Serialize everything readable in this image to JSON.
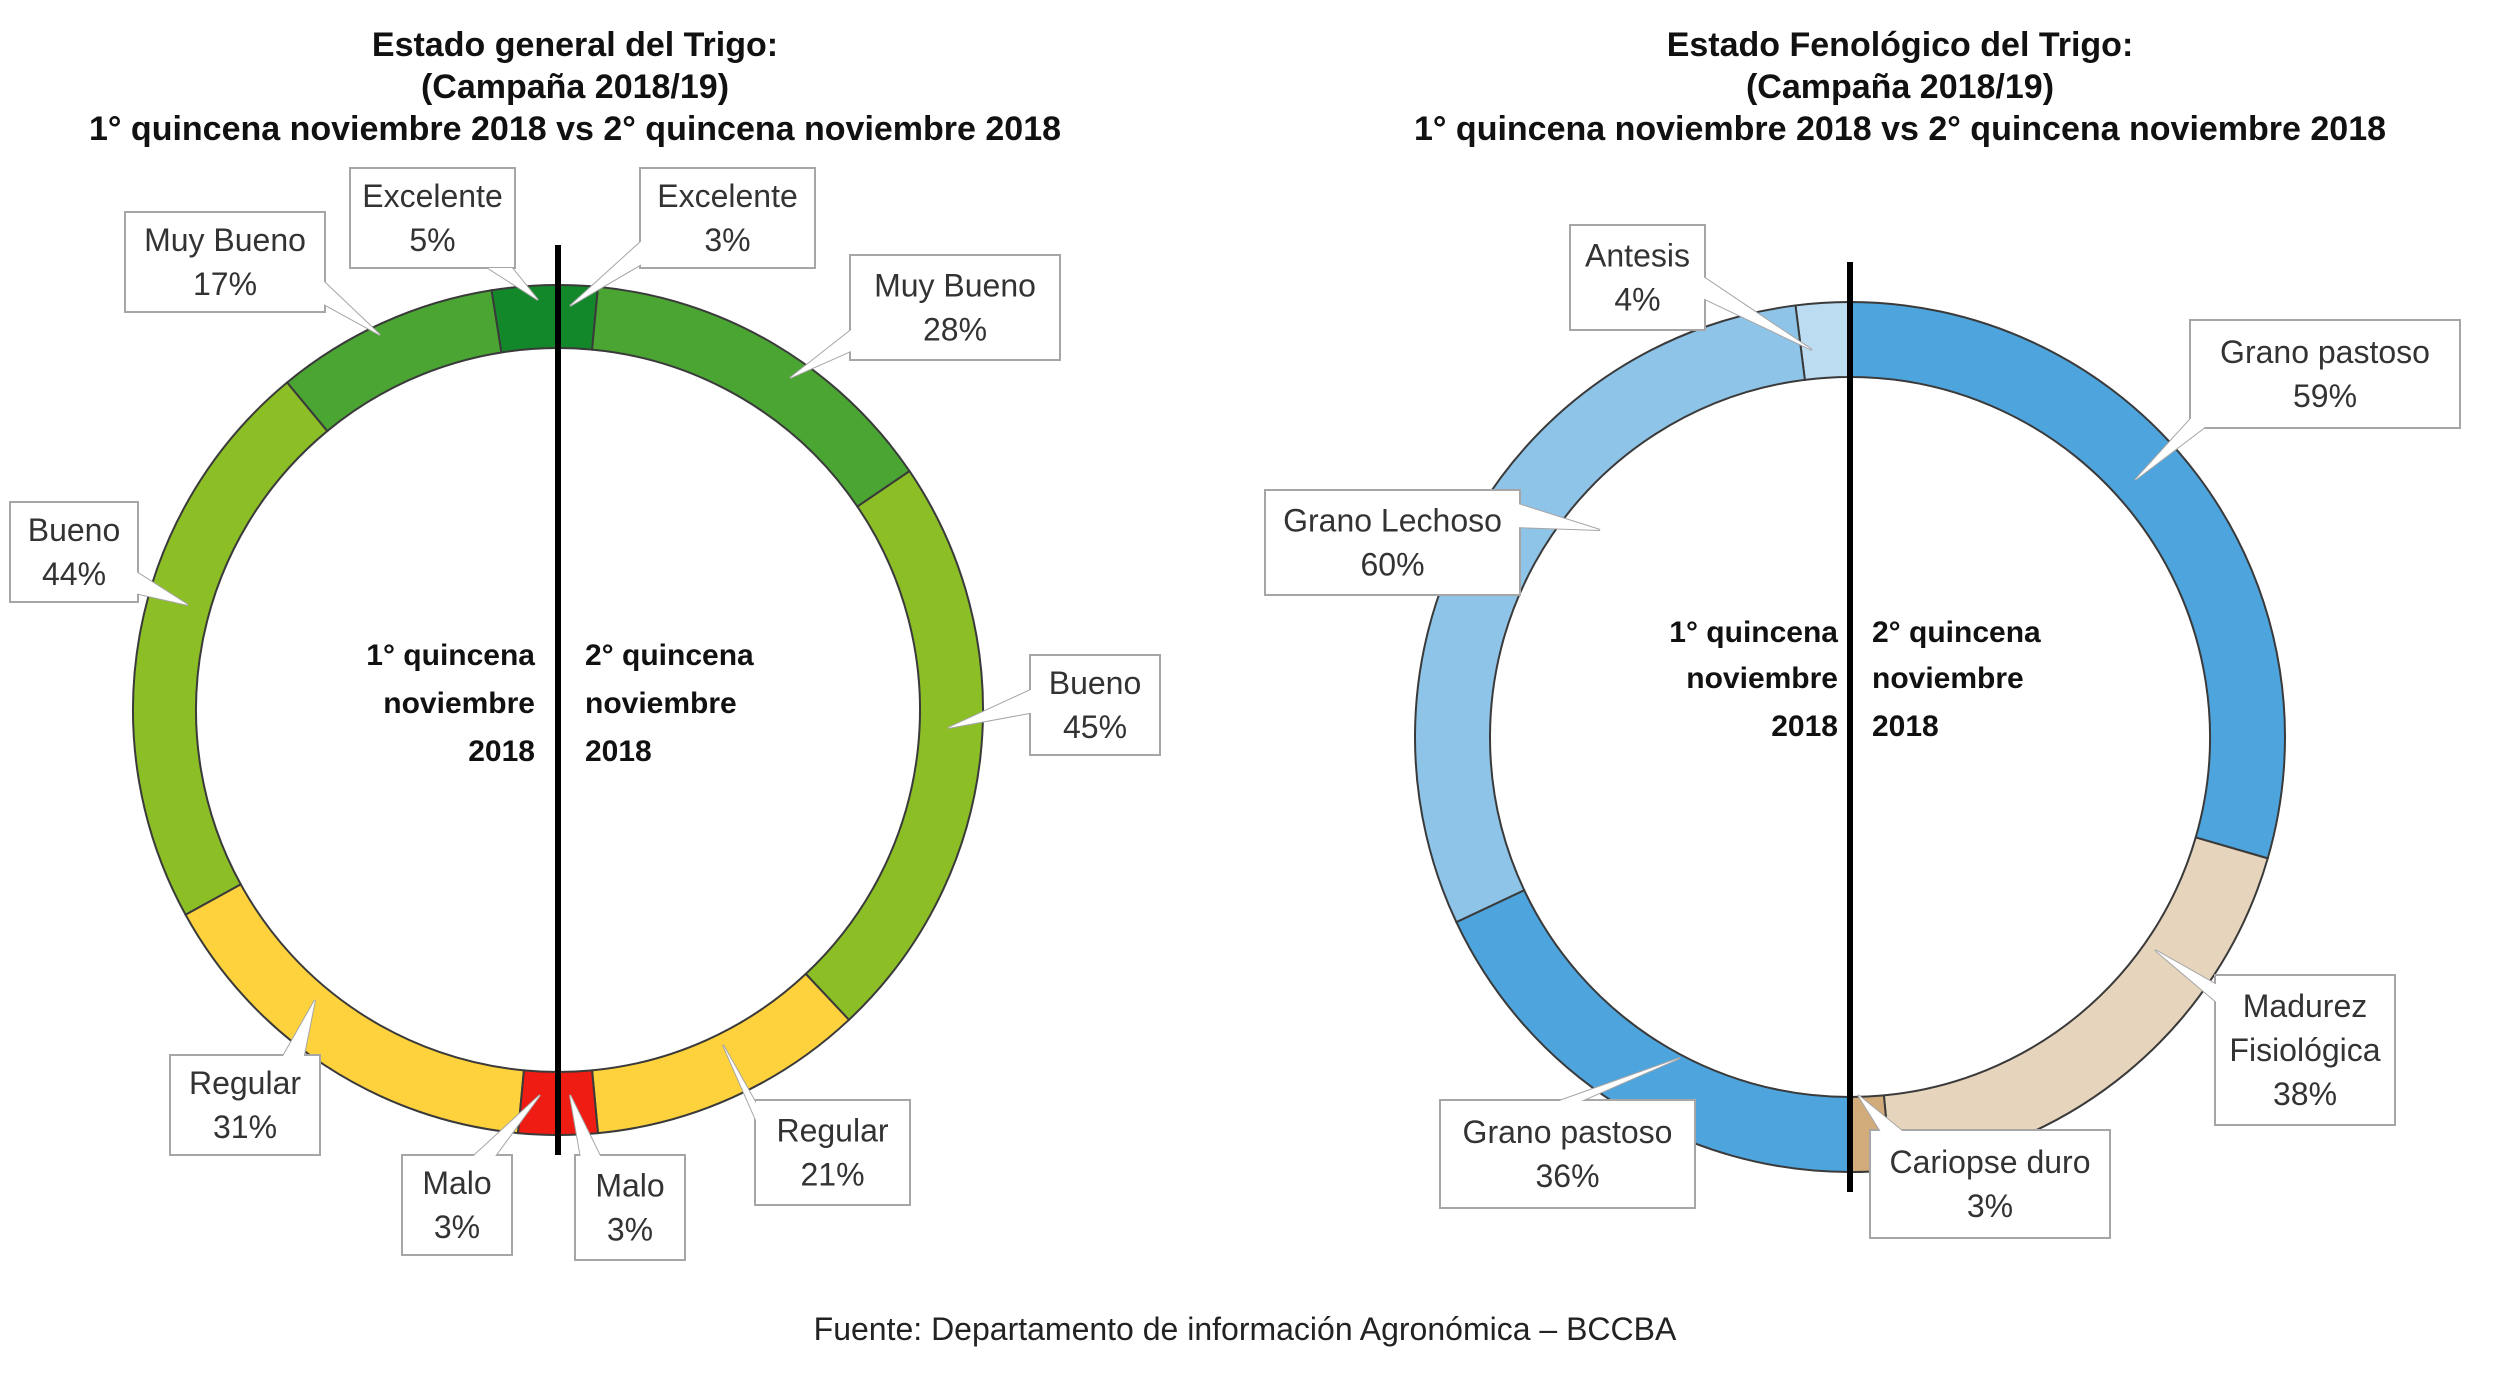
{
  "source": "Fuente: Departamento de información Agronómica – BCCBA",
  "chart_data": [
    {
      "type": "donut",
      "title": [
        "Estado general del Trigo:",
        "(Campaña 2018/19)",
        "1° quincena noviembre 2018 vs 2° quincena noviembre 2018"
      ],
      "halves": [
        {
          "name_lines": [
            "1° quincena",
            "noviembre",
            "2018"
          ],
          "slices": [
            {
              "label": "Excelente",
              "value": 5,
              "pct": "5%",
              "color": "#12882a"
            },
            {
              "label": "Muy Bueno",
              "value": 17,
              "pct": "17%",
              "color": "#4aa532"
            },
            {
              "label": "Bueno",
              "value": 44,
              "pct": "44%",
              "color": "#8cbf26"
            },
            {
              "label": "Regular",
              "value": 31,
              "pct": "31%",
              "color": "#fdd23c"
            },
            {
              "label": "Malo",
              "value": 3,
              "pct": "3%",
              "color": "#ee1c12"
            }
          ]
        },
        {
          "name_lines": [
            "2° quincena",
            "noviembre",
            "2018"
          ],
          "slices": [
            {
              "label": "Excelente",
              "value": 3,
              "pct": "3%",
              "color": "#12882a"
            },
            {
              "label": "Muy Bueno",
              "value": 28,
              "pct": "28%",
              "color": "#4aa532"
            },
            {
              "label": "Bueno",
              "value": 45,
              "pct": "45%",
              "color": "#8cbf26"
            },
            {
              "label": "Regular",
              "value": 21,
              "pct": "21%",
              "color": "#fdd23c"
            },
            {
              "label": "Malo",
              "value": 3,
              "pct": "3%",
              "color": "#ee1c12"
            }
          ]
        }
      ]
    },
    {
      "type": "donut",
      "title": [
        "Estado Fenológico del Trigo:",
        "(Campaña 2018/19)",
        "1° quincena noviembre 2018 vs 2° quincena noviembre 2018"
      ],
      "halves": [
        {
          "name_lines": [
            "1° quincena",
            "noviembre",
            "2018"
          ],
          "slices": [
            {
              "label": "Antesis",
              "value": 4,
              "pct": "4%",
              "color": "#bcdcf2"
            },
            {
              "label": "Grano Lechoso",
              "value": 60,
              "pct": "60%",
              "color": "#8ec4e8"
            },
            {
              "label": "Grano pastoso",
              "value": 36,
              "pct": "36%",
              "color": "#4ea4dc"
            }
          ]
        },
        {
          "name_lines": [
            "2° quincena",
            "noviembre",
            "2018"
          ],
          "slices": [
            {
              "label": "Grano pastoso",
              "value": 59,
              "pct": "59%",
              "color": "#4ea4dc"
            },
            {
              "label": "Madurez Fisiológica",
              "value": 38,
              "pct": "38%",
              "color": "#e6d5bc"
            },
            {
              "label": "Cariopse duro",
              "value": 3,
              "pct": "3%",
              "color": "#d2ab7a"
            }
          ]
        }
      ]
    }
  ]
}
